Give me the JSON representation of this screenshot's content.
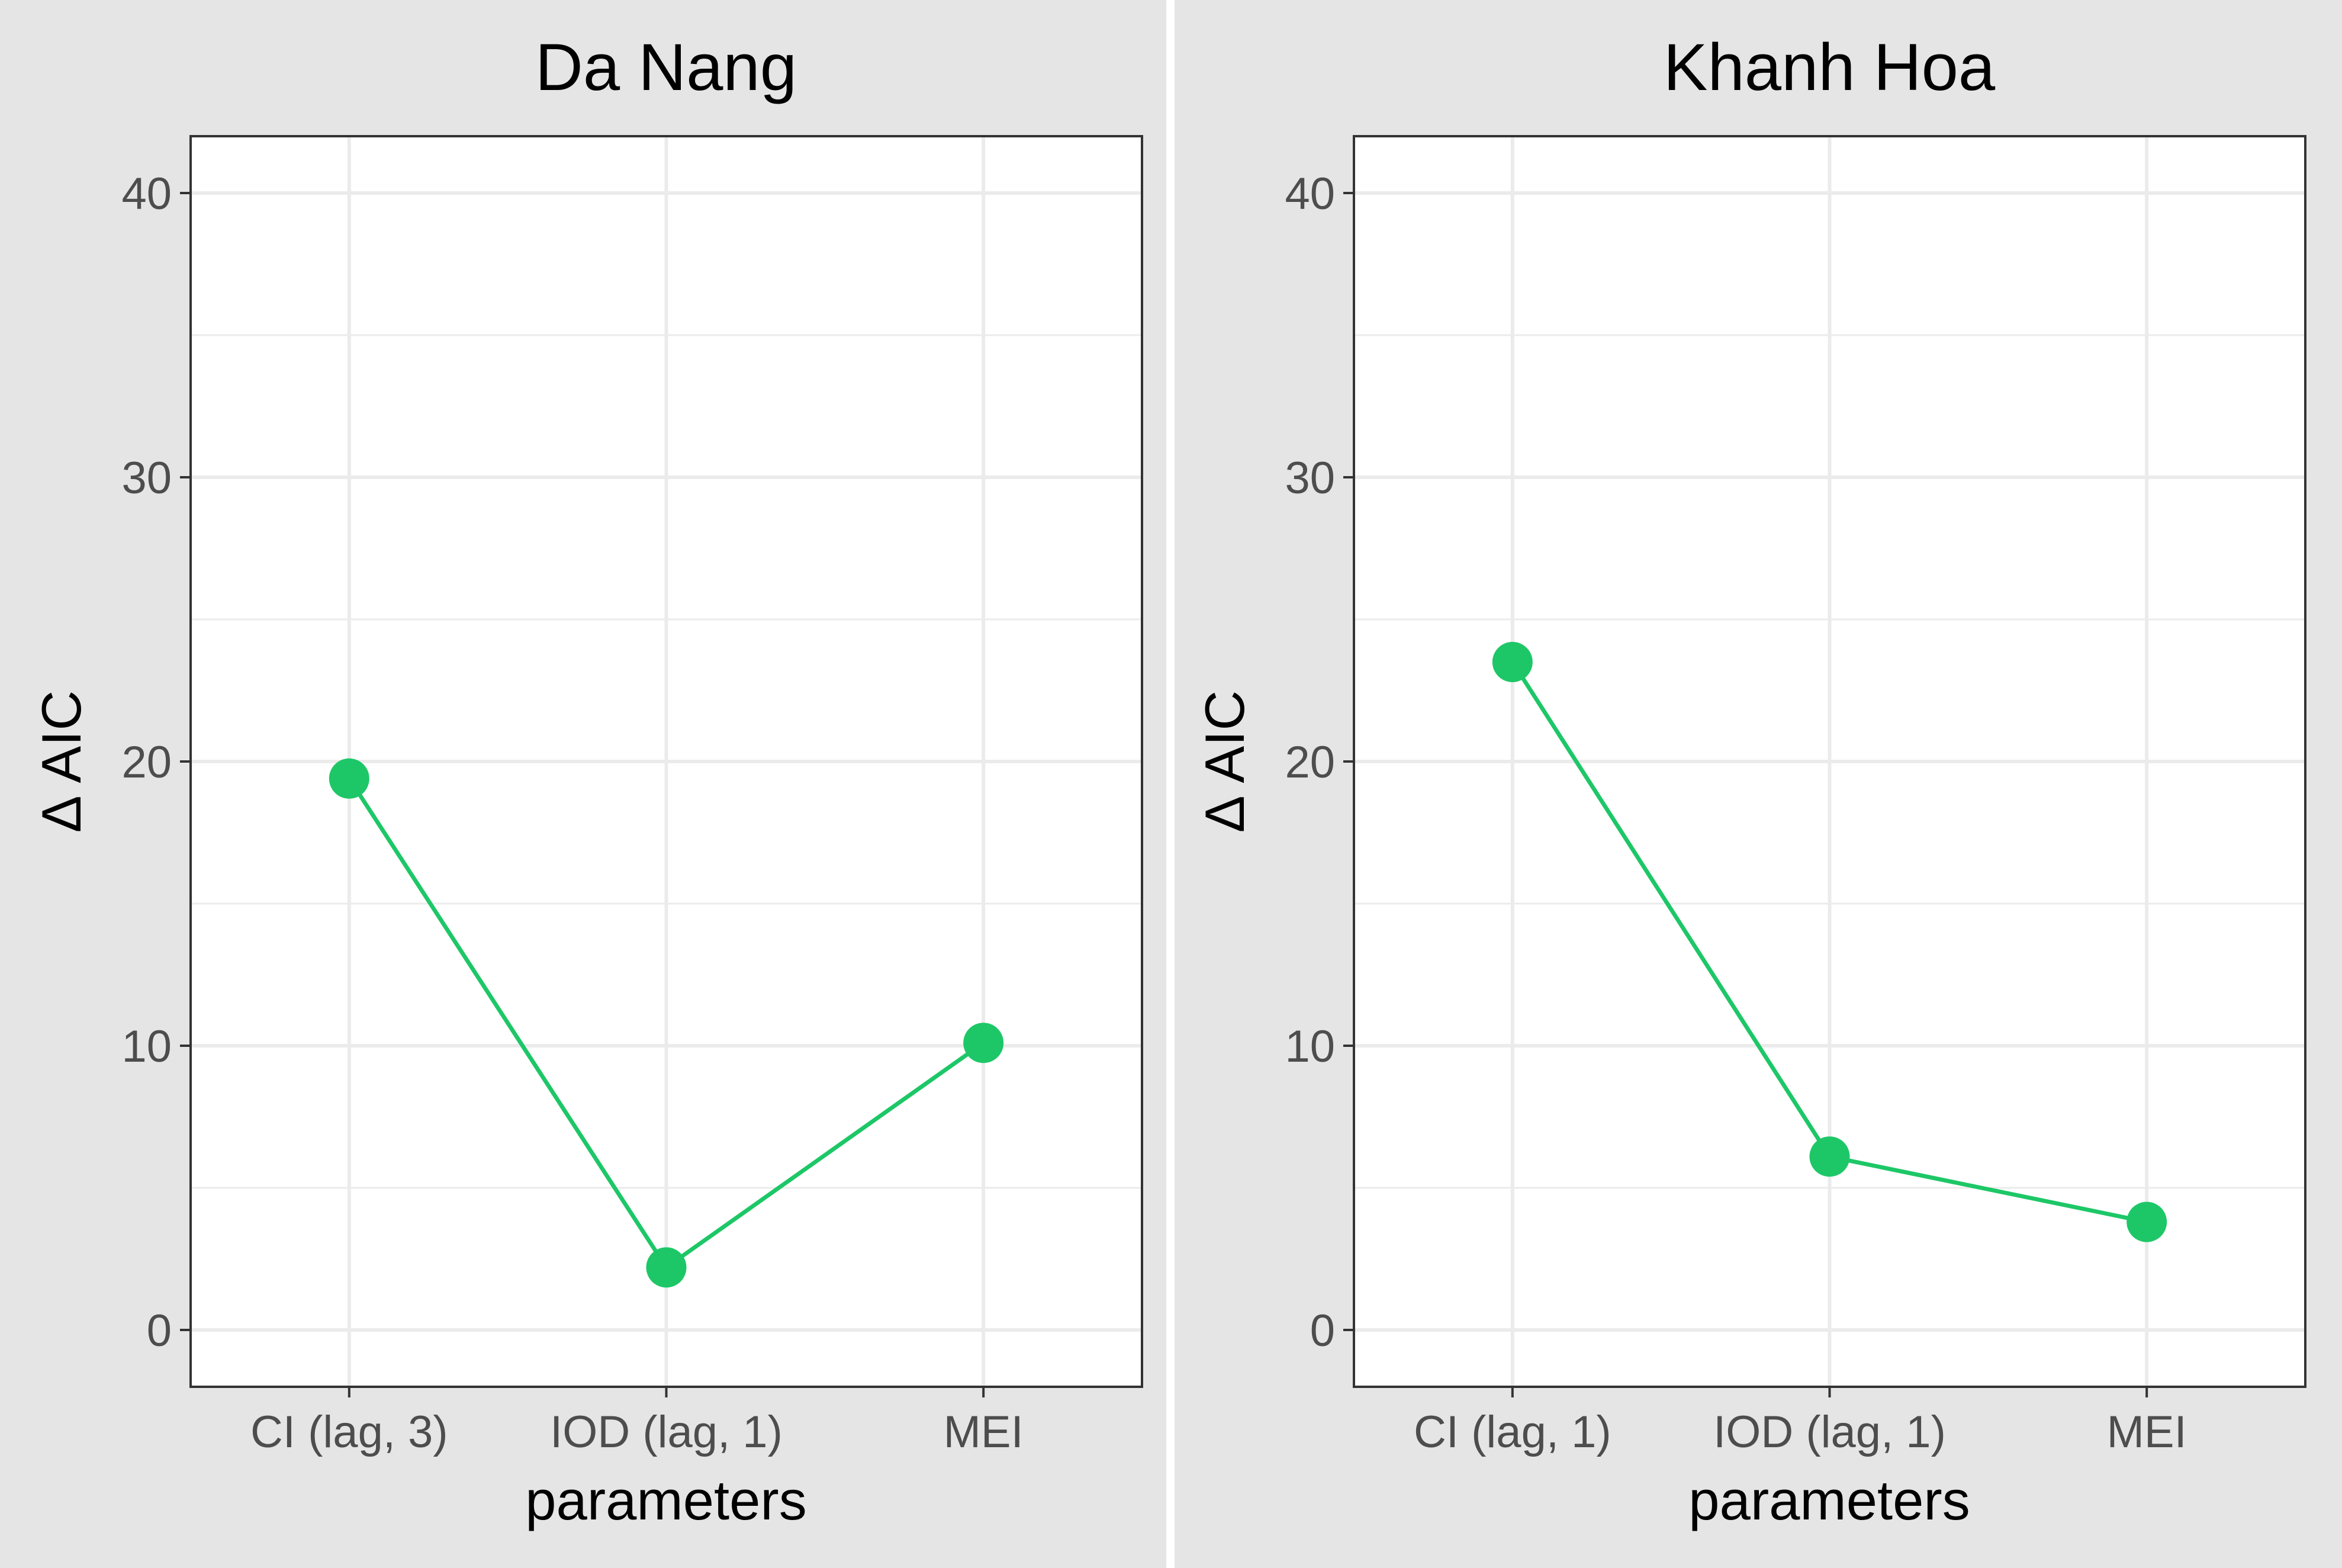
{
  "chart_data": {
    "type": "line",
    "ylabel": "Δ AIC",
    "xlabel": "parameters",
    "ylim": [
      -2,
      42
    ],
    "yticks": [
      0,
      10,
      20,
      30,
      40
    ],
    "grid": true,
    "colors": {
      "series": "#1dc767",
      "strip_background": "#e5e5e5",
      "panel_background": "#ffffff",
      "grid": "#ebebeb",
      "frame": "#333333"
    },
    "panels": [
      {
        "title": "Da Nang",
        "categories": [
          "CI (lag, 3)",
          "IOD (lag, 1)",
          "MEI"
        ],
        "values": [
          19.4,
          2.2,
          10.1
        ]
      },
      {
        "title": "Khanh Hoa",
        "categories": [
          "CI (lag, 1)",
          "IOD (lag, 1)",
          "MEI"
        ],
        "values": [
          23.5,
          6.1,
          3.8
        ]
      }
    ]
  }
}
